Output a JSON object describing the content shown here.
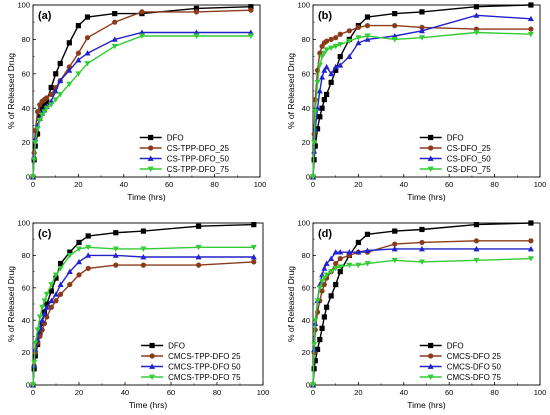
{
  "chart_data": [
    {
      "panel": "(a)",
      "type": "line",
      "xlabel": "Time (hrs)",
      "ylabel": "% of Released Drug",
      "xlim": [
        0,
        100
      ],
      "ylim": [
        0,
        100
      ],
      "xticks": [
        "0",
        "20",
        "40",
        "60",
        "80",
        "100"
      ],
      "yticks": [
        "0",
        "20",
        "40",
        "60",
        "80",
        "100"
      ],
      "legend_position": "lower-right",
      "series": [
        {
          "name": "DFO",
          "color": "#000000",
          "marker": "square",
          "x": [
            0,
            0.5,
            1,
            2,
            3,
            4,
            5,
            6,
            8,
            10,
            12,
            16,
            20,
            24,
            36,
            48,
            72,
            96
          ],
          "y": [
            0,
            10,
            18,
            25,
            35,
            40,
            42,
            44,
            52,
            60,
            66,
            78,
            88,
            93,
            95,
            95,
            98,
            99
          ]
        },
        {
          "name": "CS-TPP-DFO_25",
          "color": "#8b3a1a",
          "marker": "circle",
          "x": [
            0,
            0.5,
            1,
            2,
            3,
            4,
            5,
            6,
            8,
            10,
            12,
            16,
            20,
            24,
            36,
            48,
            72,
            96
          ],
          "y": [
            0,
            14,
            27,
            38,
            42,
            44,
            45,
            46,
            48,
            52,
            56,
            64,
            72,
            81,
            90,
            96,
            96,
            97
          ]
        },
        {
          "name": "CS-TPP-DFO_50",
          "color": "#2222cc",
          "marker": "triangle-up",
          "x": [
            0,
            0.5,
            1,
            2,
            3,
            4,
            5,
            6,
            8,
            10,
            12,
            16,
            20,
            24,
            36,
            48,
            72,
            96
          ],
          "y": [
            0,
            12,
            22,
            30,
            34,
            37,
            39,
            41,
            44,
            50,
            56,
            62,
            68,
            72,
            80,
            84,
            84,
            84
          ]
        },
        {
          "name": "CS-TPP-DFO_75",
          "color": "#33cc33",
          "marker": "triangle-down",
          "x": [
            0,
            0.5,
            1,
            2,
            3,
            4,
            5,
            6,
            8,
            10,
            12,
            16,
            20,
            24,
            36,
            48,
            72,
            96
          ],
          "y": [
            0,
            10,
            20,
            28,
            33,
            36,
            38,
            40,
            42,
            45,
            48,
            54,
            60,
            66,
            76,
            82,
            82,
            82
          ]
        }
      ]
    },
    {
      "panel": "(b)",
      "type": "line",
      "xlabel": "Time (hrs)",
      "ylabel": "% of Released Drug",
      "xlim": [
        0,
        100
      ],
      "ylim": [
        0,
        100
      ],
      "xticks": [
        "0",
        "20",
        "40",
        "60",
        "80",
        "100"
      ],
      "yticks": [
        "0",
        "20",
        "40",
        "60",
        "80",
        "100"
      ],
      "legend_position": "lower-right",
      "series": [
        {
          "name": "DFO",
          "color": "#000000",
          "marker": "square",
          "x": [
            0,
            0.5,
            1,
            2,
            3,
            4,
            5,
            6,
            8,
            10,
            12,
            16,
            20,
            24,
            36,
            48,
            72,
            96
          ],
          "y": [
            0,
            10,
            18,
            28,
            35,
            40,
            45,
            48,
            55,
            62,
            70,
            80,
            88,
            93,
            95,
            96,
            99,
            100
          ]
        },
        {
          "name": "CS-DFO_25",
          "color": "#8b3a1a",
          "marker": "circle",
          "x": [
            0,
            0.5,
            1,
            2,
            3,
            4,
            5,
            6,
            8,
            10,
            12,
            16,
            20,
            24,
            36,
            48,
            72,
            96
          ],
          "y": [
            0,
            25,
            45,
            62,
            72,
            76,
            78,
            79,
            80,
            81,
            83,
            85,
            87,
            88,
            88,
            87,
            86,
            86
          ]
        },
        {
          "name": "CS-DFO_50",
          "color": "#2222cc",
          "marker": "triangle-up",
          "x": [
            0,
            0.5,
            1,
            2,
            3,
            4,
            5,
            6,
            8,
            10,
            12,
            16,
            20,
            24,
            36,
            48,
            72,
            96
          ],
          "y": [
            0,
            15,
            28,
            40,
            50,
            58,
            62,
            64,
            60,
            64,
            65,
            70,
            78,
            80,
            82,
            85,
            94,
            92
          ]
        },
        {
          "name": "CS-DFO_75",
          "color": "#33cc33",
          "marker": "triangle-down",
          "x": [
            0,
            0.5,
            1,
            2,
            3,
            4,
            5,
            6,
            8,
            10,
            12,
            16,
            20,
            24,
            36,
            48,
            72,
            96
          ],
          "y": [
            0,
            20,
            38,
            55,
            65,
            70,
            72,
            74,
            75,
            76,
            77,
            79,
            81,
            82,
            80,
            81,
            84,
            83
          ]
        }
      ]
    },
    {
      "panel": "(c)",
      "type": "line",
      "xlabel": "Time (hrs)",
      "ylabel": "% of Released Drug",
      "xlim": [
        0,
        100
      ],
      "ylim": [
        0,
        100
      ],
      "xticks": [
        "0",
        "20",
        "40",
        "60",
        "80",
        "100"
      ],
      "yticks": [
        "0",
        "20",
        "40",
        "60",
        "80",
        "100"
      ],
      "legend_position": "lower-right",
      "series": [
        {
          "name": "DFO",
          "color": "#000000",
          "marker": "square",
          "x": [
            0,
            0.5,
            1,
            2,
            3,
            4,
            5,
            6,
            8,
            10,
            12,
            16,
            20,
            24,
            36,
            48,
            72,
            96
          ],
          "y": [
            0,
            10,
            18,
            25,
            32,
            38,
            45,
            50,
            58,
            66,
            75,
            82,
            88,
            92,
            94,
            95,
            98,
            99
          ]
        },
        {
          "name": "CMCS-TPP-DFO 25",
          "color": "#8b3a1a",
          "marker": "circle",
          "x": [
            0,
            0.5,
            1,
            2,
            3,
            4,
            5,
            6,
            8,
            10,
            12,
            16,
            20,
            24,
            36,
            48,
            72,
            96
          ],
          "y": [
            0,
            12,
            20,
            26,
            30,
            34,
            38,
            42,
            48,
            52,
            56,
            62,
            68,
            72,
            74,
            74,
            74,
            76
          ]
        },
        {
          "name": "CMCS-TPP-DFO 50",
          "color": "#2222cc",
          "marker": "triangle-up",
          "x": [
            0,
            0.5,
            1,
            2,
            3,
            4,
            5,
            6,
            8,
            10,
            12,
            16,
            20,
            24,
            36,
            48,
            72,
            96
          ],
          "y": [
            0,
            12,
            22,
            28,
            35,
            40,
            44,
            48,
            52,
            56,
            62,
            70,
            76,
            80,
            80,
            79,
            79,
            79
          ]
        },
        {
          "name": "CMCS-TPP-DFO 75",
          "color": "#33cc33",
          "marker": "triangle-down",
          "x": [
            0,
            0.5,
            1,
            2,
            3,
            4,
            5,
            6,
            8,
            10,
            12,
            16,
            20,
            24,
            36,
            48,
            72,
            96
          ],
          "y": [
            0,
            14,
            26,
            34,
            42,
            48,
            52,
            56,
            62,
            68,
            72,
            80,
            84,
            85,
            84,
            84,
            85,
            85
          ]
        }
      ]
    },
    {
      "panel": "(d)",
      "type": "line",
      "xlabel": "Time (hrs)",
      "ylabel": "% of Released Drug",
      "xlim": [
        0,
        100
      ],
      "ylim": [
        0,
        100
      ],
      "xticks": [
        "0",
        "20",
        "40",
        "60",
        "80",
        "100"
      ],
      "yticks": [
        "0",
        "20",
        "40",
        "60",
        "80",
        "100"
      ],
      "legend_position": "lower-right",
      "series": [
        {
          "name": "DFO",
          "color": "#000000",
          "marker": "square",
          "x": [
            0,
            0.5,
            1,
            2,
            3,
            4,
            5,
            6,
            8,
            10,
            12,
            16,
            20,
            24,
            36,
            48,
            72,
            96
          ],
          "y": [
            0,
            10,
            15,
            22,
            28,
            35,
            42,
            48,
            55,
            62,
            70,
            80,
            88,
            93,
            95,
            96,
            99,
            100
          ]
        },
        {
          "name": "CMCS-DFO 25",
          "color": "#8b3a1a",
          "marker": "circle",
          "x": [
            0,
            0.5,
            1,
            2,
            3,
            4,
            5,
            6,
            8,
            10,
            12,
            16,
            20,
            24,
            36,
            48,
            72,
            96
          ],
          "y": [
            0,
            20,
            34,
            45,
            52,
            58,
            62,
            66,
            70,
            75,
            78,
            80,
            82,
            82,
            87,
            88,
            89,
            89
          ]
        },
        {
          "name": "CMCS-DFO 50",
          "color": "#2222cc",
          "marker": "triangle-up",
          "x": [
            0,
            0.5,
            1,
            2,
            3,
            4,
            5,
            6,
            8,
            10,
            12,
            16,
            20,
            24,
            36,
            48,
            72,
            96
          ],
          "y": [
            0,
            22,
            38,
            52,
            62,
            68,
            72,
            75,
            78,
            82,
            82,
            82,
            82,
            83,
            84,
            84,
            84,
            84
          ]
        },
        {
          "name": "CMCS-DFO 75",
          "color": "#33cc33",
          "marker": "triangle-down",
          "x": [
            0,
            0.5,
            1,
            2,
            3,
            4,
            5,
            6,
            8,
            10,
            12,
            16,
            20,
            24,
            36,
            48,
            72,
            96
          ],
          "y": [
            0,
            25,
            40,
            52,
            60,
            64,
            66,
            68,
            70,
            72,
            73,
            74,
            74,
            75,
            77,
            76,
            77,
            78
          ]
        }
      ]
    }
  ]
}
